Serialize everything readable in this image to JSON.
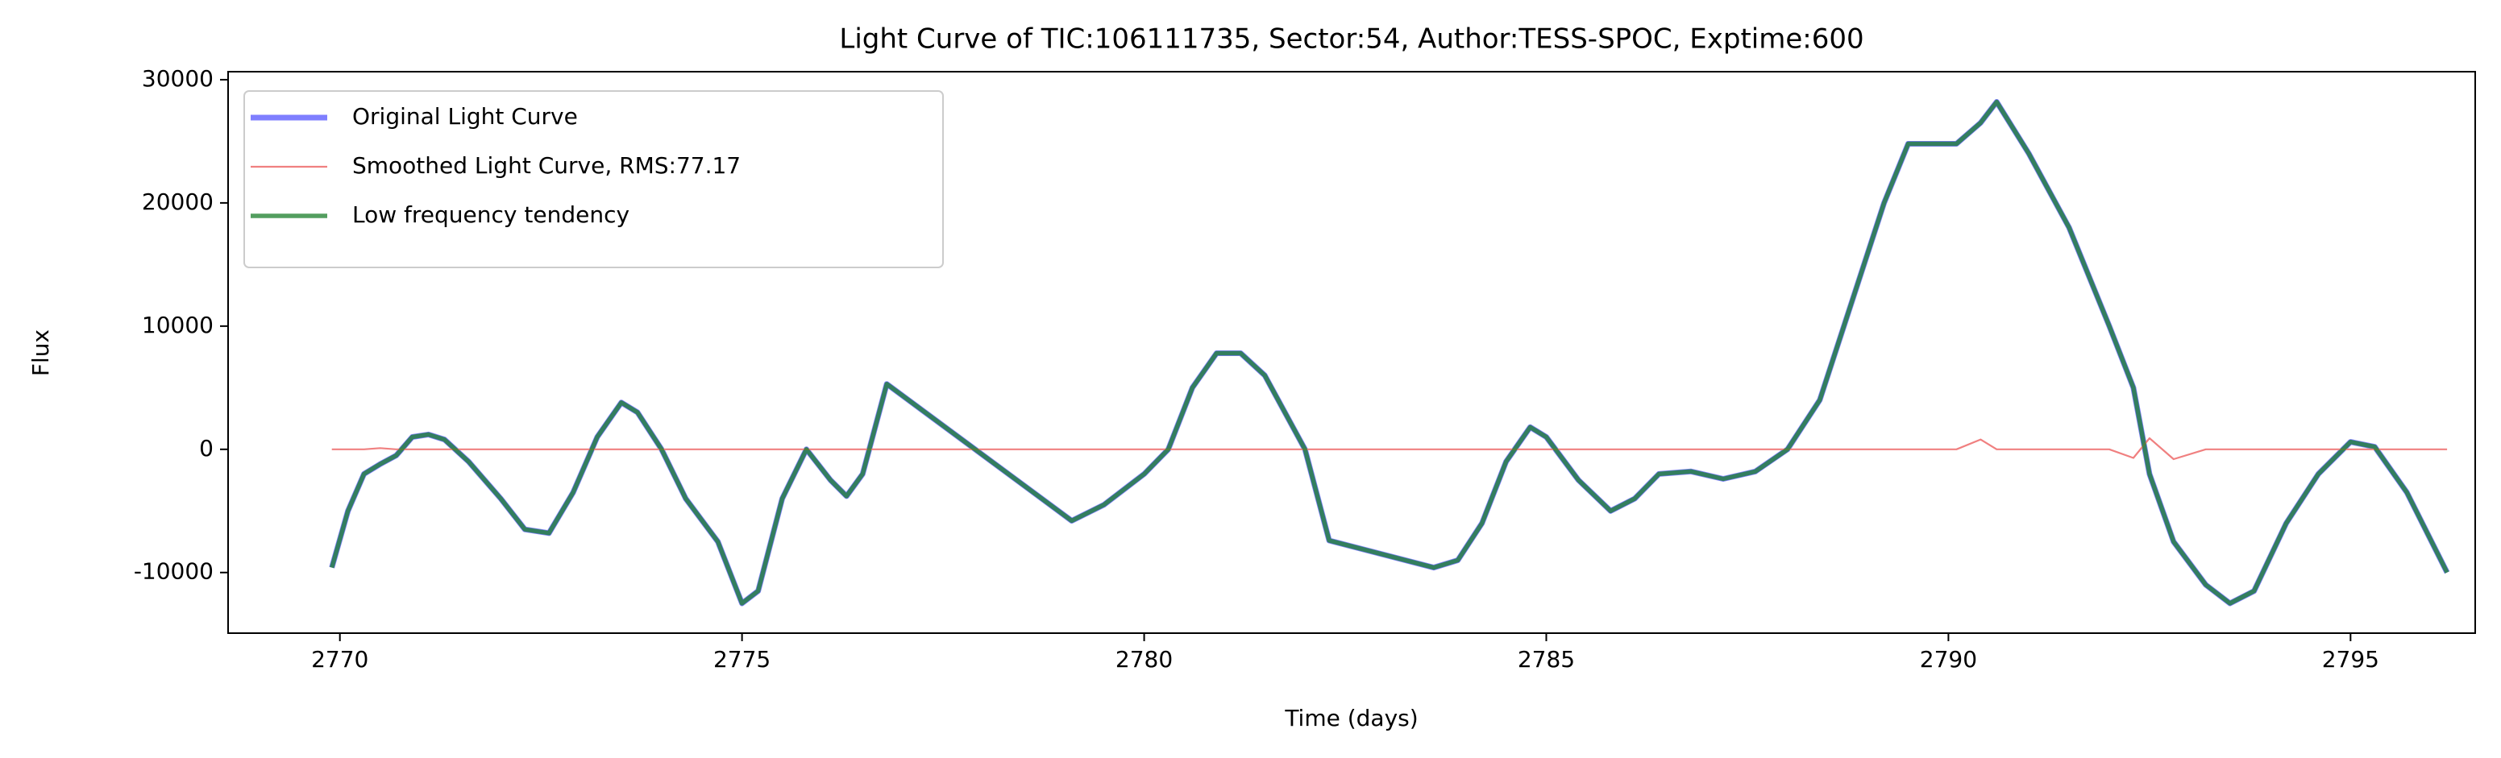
{
  "chart_data": {
    "type": "line",
    "title": "Light Curve of TIC:106111735, Sector:54, Author:TESS-SPOC, Exptime:600",
    "x_label": "Time (days)",
    "y_label": "Flux",
    "x": [
      2769.9,
      2770.1,
      2770.3,
      2770.5,
      2770.7,
      2770.9,
      2771.1,
      2771.3,
      2771.6,
      2772.0,
      2772.3,
      2772.6,
      2772.9,
      2773.2,
      2773.5,
      2773.7,
      2774.0,
      2774.3,
      2774.7,
      2775.0,
      2775.2,
      2775.5,
      2775.8,
      2776.1,
      2776.3,
      2776.5,
      2776.8,
      2779.1,
      2779.5,
      2780.0,
      2780.3,
      2780.6,
      2780.9,
      2781.2,
      2781.5,
      2782.0,
      2782.3,
      2783.6,
      2783.9,
      2784.2,
      2784.5,
      2784.8,
      2785.0,
      2785.4,
      2785.8,
      2786.1,
      2786.4,
      2786.8,
      2787.2,
      2787.6,
      2788.0,
      2788.4,
      2788.8,
      2789.2,
      2789.5,
      2789.8,
      2790.1,
      2790.4,
      2790.6,
      2791.0,
      2791.5,
      2792.0,
      2792.3,
      2792.5,
      2792.8,
      2793.2,
      2793.5,
      2793.8,
      2794.2,
      2794.6,
      2795.0,
      2795.3,
      2795.7,
      2796.2
    ],
    "series": [
      {
        "name": "Original Light Curve",
        "color": "#0000ff",
        "values": [
          -9600,
          -5000,
          -2000,
          -1200,
          -500,
          1000,
          1200,
          800,
          -1000,
          -4000,
          -6500,
          -6800,
          -3500,
          1000,
          3800,
          3000,
          0,
          -4000,
          -7500,
          -12500,
          -11500,
          -4000,
          0,
          -2500,
          -3800,
          -2000,
          5300,
          -5800,
          -4500,
          -2000,
          0,
          5000,
          7800,
          7800,
          6000,
          0,
          -7400,
          -9600,
          -9000,
          -6000,
          -1000,
          1800,
          1000,
          -2500,
          -5000,
          -4000,
          -2000,
          -1800,
          -2400,
          -1800,
          0,
          4000,
          12000,
          20000,
          24800,
          24800,
          24800,
          26500,
          28200,
          24000,
          18000,
          10000,
          5000,
          -2000,
          -7500,
          -11000,
          -12500,
          -11500,
          -6000,
          -2000,
          600,
          200,
          -3500,
          -10000
        ]
      },
      {
        "name": "Smoothed Light Curve, RMS:77.17",
        "color": "#f08080",
        "values": [
          0,
          0,
          0,
          100,
          0,
          0,
          0,
          0,
          0,
          0,
          0,
          0,
          0,
          0,
          0,
          0,
          0,
          0,
          0,
          0,
          0,
          0,
          0,
          0,
          0,
          0,
          0,
          0,
          0,
          0,
          0,
          0,
          0,
          0,
          0,
          0,
          0,
          0,
          0,
          0,
          0,
          0,
          0,
          0,
          0,
          0,
          0,
          0,
          0,
          0,
          0,
          0,
          0,
          0,
          0,
          0,
          0,
          800,
          0,
          0,
          0,
          0,
          -700,
          900,
          -800,
          0,
          0,
          0,
          0,
          0,
          0,
          0,
          0,
          0
        ]
      },
      {
        "name": "Low frequency tendency",
        "color": "#1a7d2a",
        "values": [
          -9600,
          -5000,
          -2000,
          -1200,
          -500,
          1000,
          1200,
          800,
          -1000,
          -4000,
          -6500,
          -6800,
          -3500,
          1000,
          3800,
          3000,
          0,
          -4000,
          -7500,
          -12500,
          -11500,
          -4000,
          0,
          -2500,
          -3800,
          -2000,
          5300,
          -5800,
          -4500,
          -2000,
          0,
          5000,
          7800,
          7800,
          6000,
          0,
          -7400,
          -9600,
          -9000,
          -6000,
          -1000,
          1800,
          1000,
          -2500,
          -5000,
          -4000,
          -2000,
          -1800,
          -2400,
          -1800,
          0,
          4000,
          12000,
          20000,
          24800,
          24800,
          24800,
          26500,
          28200,
          24000,
          18000,
          10000,
          5000,
          -2000,
          -7500,
          -11000,
          -12500,
          -11500,
          -6000,
          -2000,
          600,
          200,
          -3500,
          -10000
        ]
      }
    ],
    "xlim": [
      2768.61,
      2796.55
    ],
    "ylim": [
      -14920,
      30650
    ],
    "xticks": [
      2770,
      2775,
      2780,
      2785,
      2790,
      2795
    ],
    "yticks": [
      -10000,
      0,
      10000,
      20000,
      30000
    ],
    "grid": false,
    "legend": "upper left"
  }
}
